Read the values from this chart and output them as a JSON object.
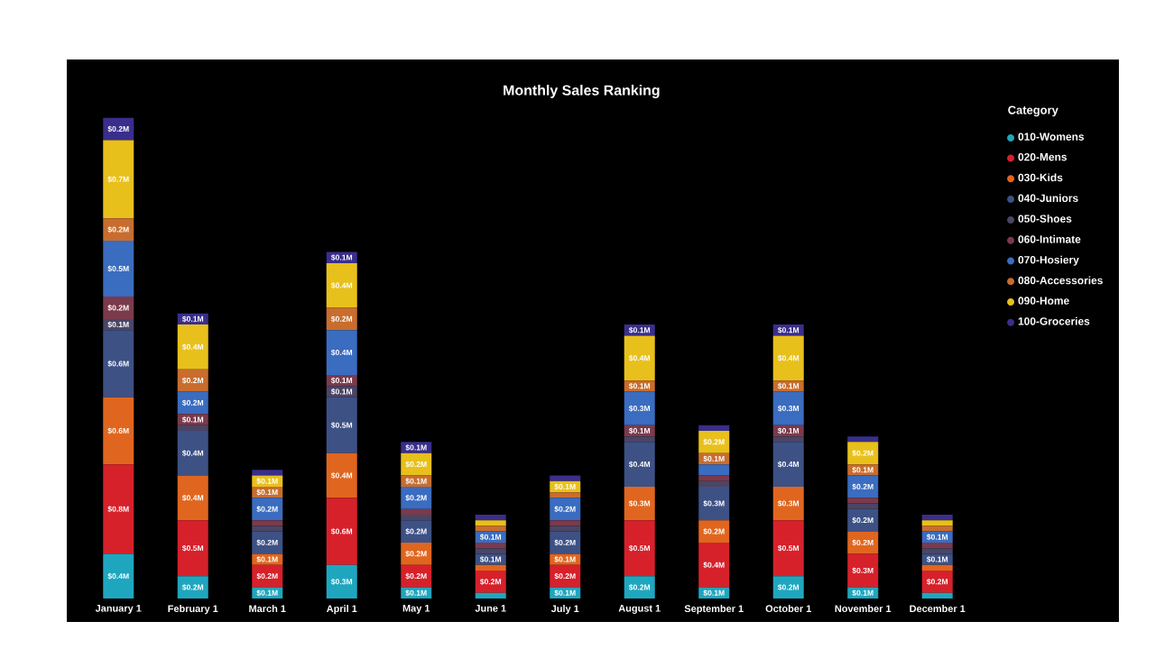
{
  "chart_data": {
    "type": "bar",
    "stacked": true,
    "title": "Monthly Sales Ranking",
    "legend_title": "Category",
    "legend": "right",
    "categories": [
      "January 1",
      "February 1",
      "March 1",
      "April 1",
      "May 1",
      "June 1",
      "July 1",
      "August 1",
      "September 1",
      "October 1",
      "November 1",
      "December 1"
    ],
    "series": [
      {
        "name": "010-Womens",
        "color": "#1fa6bf",
        "values": [
          0.4,
          0.2,
          0.1,
          0.3,
          0.1,
          0.05,
          0.1,
          0.2,
          0.1,
          0.2,
          0.1,
          0.05
        ],
        "value_labels": [
          "$0.4M",
          "$0.2M",
          "$0.1M",
          "$0.3M",
          "$0.1M",
          null,
          "$0.1M",
          "$0.2M",
          "$0.1M",
          "$0.2M",
          "$0.1M",
          null
        ]
      },
      {
        "name": "020-Mens",
        "color": "#d6212b",
        "values": [
          0.8,
          0.5,
          0.2,
          0.6,
          0.2,
          0.2,
          0.2,
          0.5,
          0.4,
          0.5,
          0.3,
          0.2
        ],
        "value_labels": [
          "$0.8M",
          "$0.5M",
          "$0.2M",
          "$0.6M",
          "$0.2M",
          "$0.2M",
          "$0.2M",
          "$0.5M",
          "$0.4M",
          "$0.5M",
          "$0.3M",
          "$0.2M"
        ]
      },
      {
        "name": "030-Kids",
        "color": "#e0661f",
        "values": [
          0.6,
          0.4,
          0.1,
          0.4,
          0.2,
          0.05,
          0.1,
          0.3,
          0.2,
          0.3,
          0.2,
          0.05
        ],
        "value_labels": [
          "$0.6M",
          "$0.4M",
          "$0.1M",
          "$0.4M",
          "$0.2M",
          null,
          "$0.1M",
          "$0.3M",
          "$0.2M",
          "$0.3M",
          "$0.2M",
          null
        ]
      },
      {
        "name": "040-Juniors",
        "color": "#3d5185",
        "values": [
          0.6,
          0.4,
          0.2,
          0.5,
          0.2,
          0.1,
          0.2,
          0.4,
          0.3,
          0.4,
          0.2,
          0.1
        ],
        "value_labels": [
          "$0.6M",
          "$0.4M",
          "$0.2M",
          "$0.5M",
          "$0.2M",
          "$0.1M",
          "$0.2M",
          "$0.4M",
          "$0.3M",
          "$0.4M",
          "$0.2M",
          "$0.1M"
        ]
      },
      {
        "name": "050-Shoes",
        "color": "#4b4565",
        "values": [
          0.1,
          0.05,
          0.05,
          0.1,
          0.05,
          0.05,
          0.05,
          0.05,
          0.05,
          0.05,
          0.05,
          0.05
        ],
        "value_labels": [
          "$0.1M",
          null,
          null,
          "$0.1M",
          null,
          null,
          null,
          null,
          null,
          null,
          null,
          null
        ]
      },
      {
        "name": "060-Intimate",
        "color": "#7b3a4c",
        "values": [
          0.2,
          0.1,
          0.05,
          0.1,
          0.05,
          0.05,
          0.05,
          0.1,
          0.05,
          0.1,
          0.05,
          0.05
        ],
        "value_labels": [
          "$0.2M",
          "$0.1M",
          null,
          "$0.1M",
          null,
          null,
          null,
          "$0.1M",
          null,
          "$0.1M",
          null,
          null
        ]
      },
      {
        "name": "070-Hosiery",
        "color": "#3a6cc0",
        "values": [
          0.5,
          0.2,
          0.2,
          0.4,
          0.2,
          0.1,
          0.2,
          0.3,
          0.1,
          0.3,
          0.2,
          0.1
        ],
        "value_labels": [
          "$0.5M",
          "$0.2M",
          "$0.2M",
          "$0.4M",
          "$0.2M",
          "$0.1M",
          "$0.2M",
          "$0.3M",
          null,
          "$0.3M",
          "$0.2M",
          "$0.1M"
        ]
      },
      {
        "name": "080-Accessories",
        "color": "#c86d2e",
        "values": [
          0.2,
          0.2,
          0.1,
          0.2,
          0.1,
          0.05,
          0.05,
          0.1,
          0.1,
          0.1,
          0.1,
          0.05
        ],
        "value_labels": [
          "$0.2M",
          "$0.2M",
          "$0.1M",
          "$0.2M",
          "$0.1M",
          null,
          null,
          "$0.1M",
          "$0.1M",
          "$0.1M",
          "$0.1M",
          null
        ]
      },
      {
        "name": "090-Home",
        "color": "#e8c01c",
        "values": [
          0.7,
          0.4,
          0.1,
          0.4,
          0.2,
          0.05,
          0.1,
          0.4,
          0.2,
          0.4,
          0.2,
          0.05
        ],
        "value_labels": [
          "$0.7M",
          "$0.4M",
          "$0.1M",
          "$0.4M",
          "$0.2M",
          null,
          "$0.1M",
          "$0.4M",
          "$0.2M",
          "$0.4M",
          "$0.2M",
          null
        ]
      },
      {
        "name": "100-Groceries",
        "color": "#3a2e8c",
        "values": [
          0.2,
          0.1,
          0.05,
          0.1,
          0.1,
          0.05,
          0.05,
          0.1,
          0.05,
          0.1,
          0.05,
          0.05
        ],
        "value_labels": [
          "$0.2M",
          "$0.1M",
          null,
          "$0.1M",
          "$0.1M",
          null,
          null,
          "$0.1M",
          null,
          "$0.1M",
          null,
          null
        ]
      }
    ]
  }
}
